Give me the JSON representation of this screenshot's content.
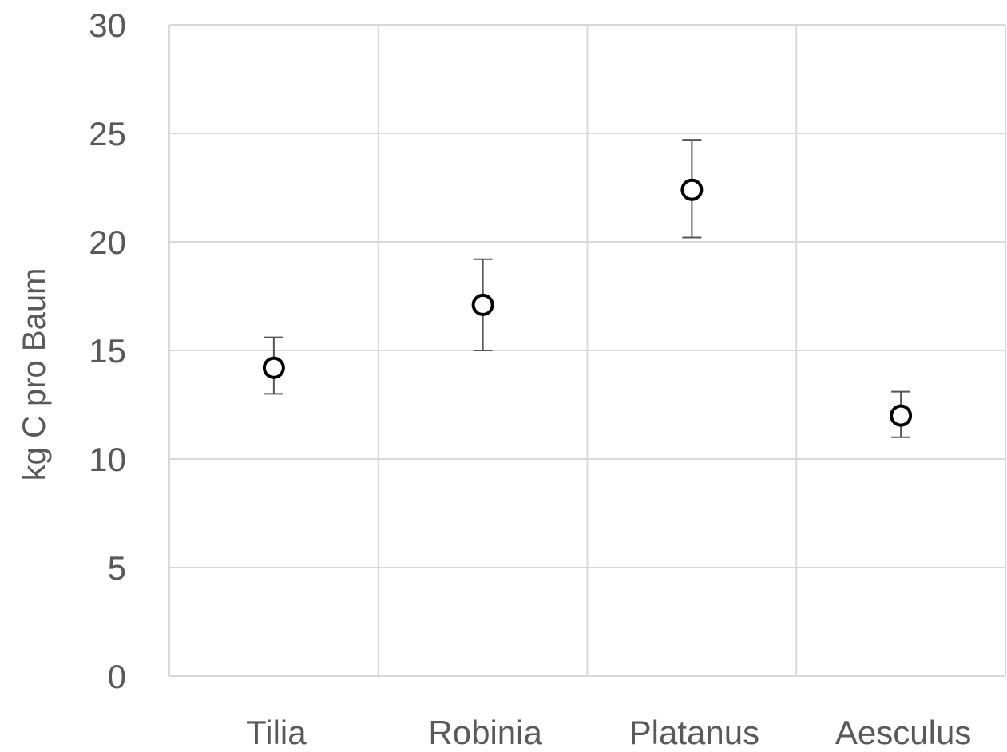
{
  "chart_data": {
    "type": "scatter",
    "title": "",
    "xlabel": "",
    "ylabel": "kg C pro Baum",
    "categories": [
      "Tilia",
      "Robinia",
      "Platanus",
      "Aesculus"
    ],
    "ylim": [
      0,
      30
    ],
    "yticks": [
      "0",
      "5",
      "10",
      "15",
      "20",
      "25",
      "30"
    ],
    "grid": true,
    "legend": "none",
    "marker": "open-circle",
    "series": [
      {
        "values": [
          14.2,
          17.1,
          22.4,
          12.0
        ],
        "error_low": [
          13.0,
          15.0,
          20.2,
          11.0
        ],
        "error_high": [
          15.6,
          19.2,
          24.7,
          13.1
        ]
      }
    ],
    "colors": {
      "marker": "#000000",
      "errorbar": "#555555",
      "grid": "#d9d9d9",
      "axis_text": "#595959"
    }
  }
}
